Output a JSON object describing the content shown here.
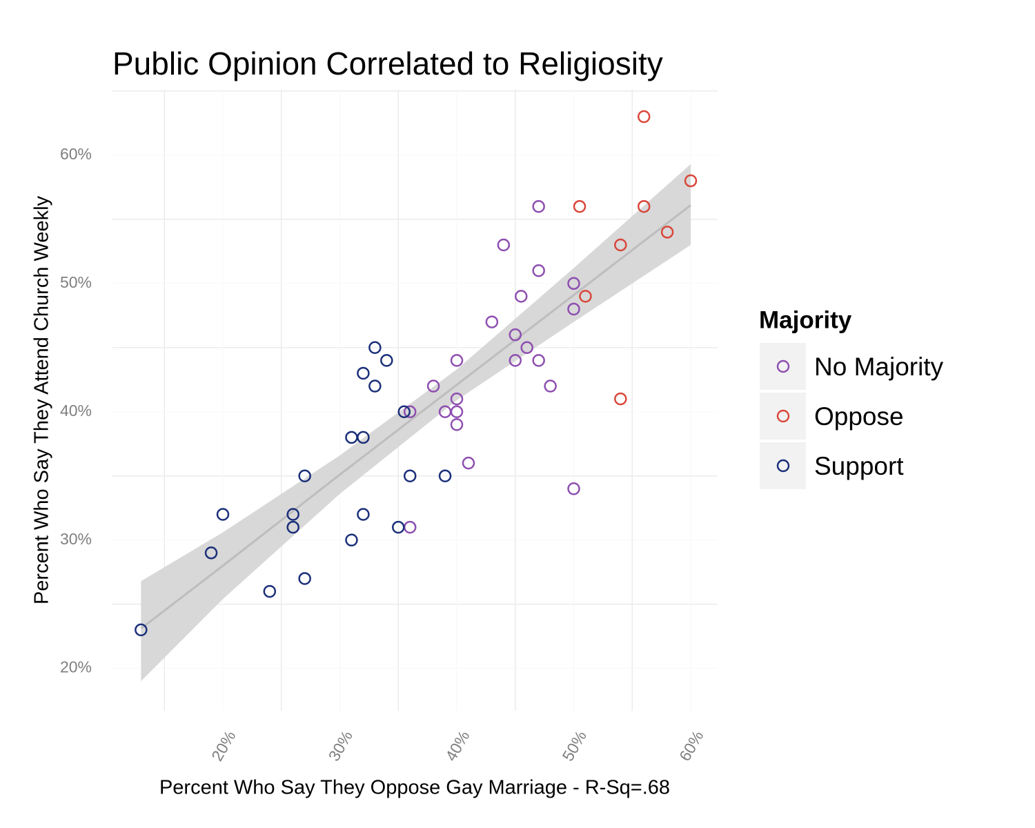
{
  "chart_data": {
    "type": "scatter",
    "title": "Public Opinion Correlated to Religiosity",
    "x_label": "Percent Who Say They Oppose Gay Marriage - R-Sq=.68",
    "y_label": "Percent Who Say They Attend Church Weekly",
    "legend_title": "Majority",
    "legend": "right",
    "xlim": [
      10.56,
      62.3
    ],
    "ylim": [
      16.7,
      65.1
    ],
    "xticks": [
      {
        "value": 20,
        "label": "20%"
      },
      {
        "value": 30,
        "label": "30%"
      },
      {
        "value": 40,
        "label": "40%"
      },
      {
        "value": 50,
        "label": "50%"
      },
      {
        "value": 60,
        "label": "60%"
      }
    ],
    "yticks": [
      {
        "value": 20,
        "label": "20%"
      },
      {
        "value": 30,
        "label": "30%"
      },
      {
        "value": 40,
        "label": "40%"
      },
      {
        "value": 50,
        "label": "50%"
      },
      {
        "value": 60,
        "label": "60%"
      }
    ],
    "xticks_minor": [
      15,
      25,
      35,
      45,
      55
    ],
    "yticks_minor": [
      25,
      35,
      45,
      55,
      65
    ],
    "grid": true,
    "series": [
      {
        "name": "No Majority",
        "color": "#8e4fb0",
        "x": [
          36,
          36,
          38,
          39,
          40,
          40,
          40,
          40,
          41,
          43,
          44,
          45,
          45,
          45.5,
          46,
          47,
          47,
          47,
          48,
          50,
          50,
          50
        ],
        "values": [
          40,
          31,
          42,
          40,
          44,
          41,
          40,
          39,
          36,
          47,
          53,
          46,
          44,
          49,
          45,
          56,
          51,
          44,
          42,
          50,
          48,
          34
        ]
      },
      {
        "name": "Oppose",
        "color": "#d9473b",
        "x": [
          56,
          60,
          50.5,
          56,
          54,
          58,
          51,
          54
        ],
        "values": [
          63,
          58,
          56,
          56,
          53,
          54,
          49,
          41
        ]
      },
      {
        "name": "Support",
        "color": "#1b2f7a",
        "x": [
          13,
          19,
          20,
          24,
          26,
          26,
          27,
          27,
          31,
          31,
          32,
          32,
          32,
          33,
          33,
          34,
          35,
          35.5,
          36,
          39
        ],
        "values": [
          23,
          29,
          32,
          26,
          32,
          31,
          35,
          27,
          38,
          30,
          43,
          38,
          32,
          45,
          42,
          44,
          31,
          40,
          35,
          35
        ]
      }
    ],
    "trend": {
      "color": "#bdbdbd",
      "band_color": "#d6d6d6",
      "x": [
        13,
        20,
        30,
        40,
        50,
        60
      ],
      "y": [
        23.1,
        28.0,
        35.1,
        42.1,
        49.1,
        56.1
      ],
      "lower": [
        19.0,
        25.4,
        33.6,
        40.9,
        47.0,
        53.0
      ],
      "upper": [
        26.8,
        30.6,
        36.6,
        43.3,
        51.2,
        59.3
      ]
    }
  }
}
